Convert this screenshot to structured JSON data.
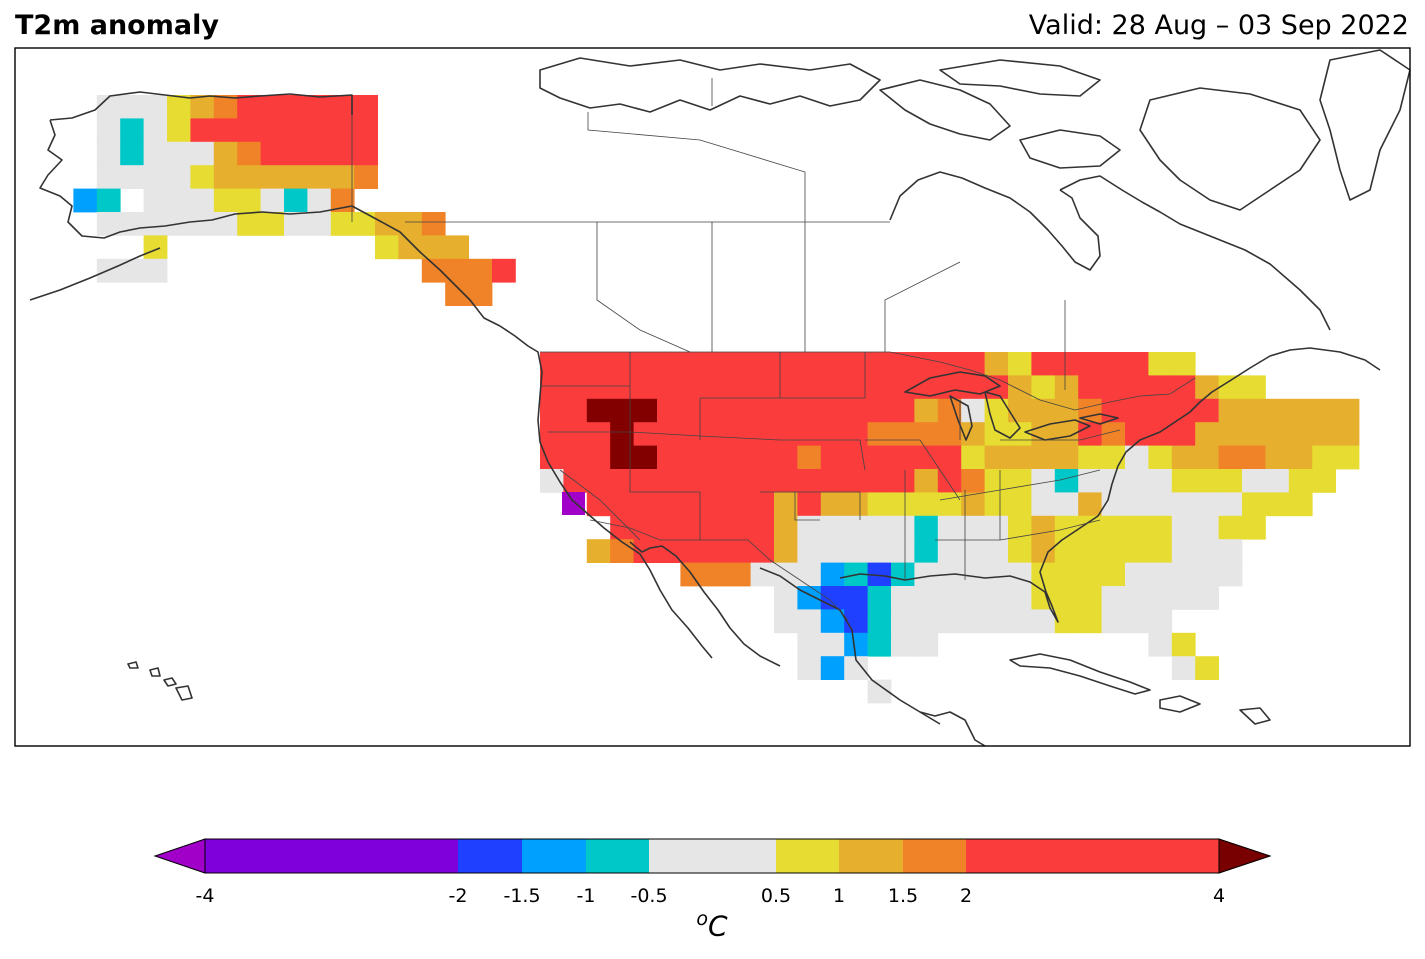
{
  "header": {
    "title": "T2m anomaly",
    "valid": "Valid: 28 Aug – 03 Sep 2022"
  },
  "colorbar": {
    "unit_superscript": "o",
    "unit": "C",
    "ticks": [
      "-4",
      "-2",
      "-1.5",
      "-1",
      "-0.5",
      "0.5",
      "1",
      "1.5",
      "2",
      "4"
    ],
    "bins": [
      {
        "from": -4,
        "to": -2,
        "color": "#8000dc"
      },
      {
        "from": -2,
        "to": -1.5,
        "color": "#2040ff"
      },
      {
        "from": -1.5,
        "to": -1,
        "color": "#00a0ff"
      },
      {
        "from": -1,
        "to": -0.5,
        "color": "#00c8c8"
      },
      {
        "from": -0.5,
        "to": 0.5,
        "color": "#e6e6e6"
      },
      {
        "from": 0.5,
        "to": 1,
        "color": "#e6dc32"
      },
      {
        "from": 1,
        "to": 1.5,
        "color": "#e6af2d"
      },
      {
        "from": 1.5,
        "to": 2,
        "color": "#f08228"
      },
      {
        "from": 2,
        "to": 4,
        "color": "#fa3c3c"
      }
    ],
    "extend_low_color": "#a000c8",
    "extend_high_color": "#780000"
  },
  "palette": {
    "grey": "#e6e6e6",
    "yellow": "#e6dc32",
    "gold": "#e6af2d",
    "orange": "#f08228",
    "red": "#fa3c3c",
    "darkred": "#820000",
    "cyan": "#00c8c8",
    "sky": "#00a0ff",
    "blue": "#2040ff",
    "purple": "#a000c8"
  }
}
